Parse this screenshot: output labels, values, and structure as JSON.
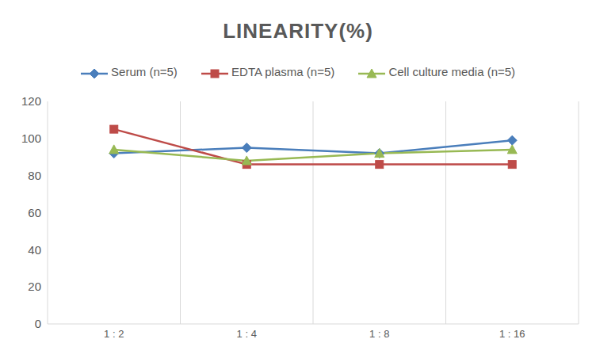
{
  "chart_data": {
    "type": "line",
    "title": "LINEARITY(%)",
    "categories": [
      "1 : 2",
      "1 : 4",
      "1 : 8",
      "1 : 16"
    ],
    "series": [
      {
        "name": "Serum (n=5)",
        "color": "#4a7ebb",
        "marker": "diamond",
        "values": [
          92,
          95,
          92,
          99
        ]
      },
      {
        "name": "EDTA plasma (n=5)",
        "color": "#be4b48",
        "marker": "square",
        "values": [
          105,
          86,
          86,
          86
        ]
      },
      {
        "name": "Cell culture media (n=5)",
        "color": "#98b954",
        "marker": "triangle",
        "values": [
          94,
          88,
          92,
          94
        ]
      }
    ],
    "ylim": [
      0,
      120
    ],
    "yticks": [
      0,
      20,
      40,
      60,
      80,
      100,
      120
    ],
    "grid": true,
    "legend": "top"
  }
}
